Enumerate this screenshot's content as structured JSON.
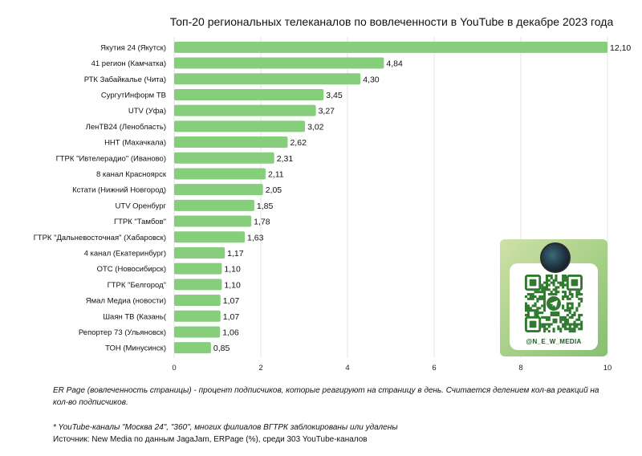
{
  "chart_data": {
    "type": "bar",
    "orientation": "horizontal",
    "title": "Топ-20 региональных телеканалов по вовлеченности в YouTube в декабре 2023 года",
    "categories": [
      "Якутия 24 (Якутск)",
      "41 регион (Камчатка)",
      "РТК Забайкалье (Чита)",
      "СургутИнформ ТВ",
      "UTV (Уфа)",
      "ЛенТВ24 (Ленобласть)",
      "ННТ (Махачкала)",
      "ГТРК \"Ивтелерадио\" (Иваново)",
      "8 канал Красноярск",
      "Кстати (Нижний Новгород)",
      "UTV Оренбург",
      "ГТРК \"Тамбов\"",
      "ГТРК \"Дальневосточная\" (Хабаровск)",
      "4 канал (Екатеринбург)",
      "ОТС (Новосибирск)",
      "ГТРК \"Белгород\"",
      "Ямал Медиа (новости)",
      "Шаян ТВ (Казань(",
      "Репортер 73 (Ульяновск)",
      "ТОН (Минусинск)"
    ],
    "values": [
      12.1,
      4.84,
      4.3,
      3.45,
      3.27,
      3.02,
      2.62,
      2.31,
      2.11,
      2.05,
      1.85,
      1.78,
      1.63,
      1.17,
      1.1,
      1.1,
      1.07,
      1.07,
      1.06,
      0.85
    ],
    "value_labels": [
      "12,10",
      "4,84",
      "4,30",
      "3,45",
      "3,27",
      "3,02",
      "2,62",
      "2,31",
      "2,11",
      "2,05",
      "1,85",
      "1,78",
      "1,63",
      "1,17",
      "1,10",
      "1,10",
      "1,07",
      "1,07",
      "1,06",
      "0,85"
    ],
    "xticks": [
      0,
      2,
      4,
      6,
      8,
      10
    ],
    "xlim": [
      0,
      10
    ],
    "first_bar_clipped_at_axis_max": true,
    "xlabel": "",
    "ylabel": "",
    "grid": "vertical",
    "bar_color": "#86ce7c"
  },
  "notes": {
    "er_definition": "ER Page (вовлеченность страницы) - процент подписчиков, которые реагируют на страницу в день. Считается делением кол-ва реакций на кол-во подписчиков.",
    "footnote": "* YouTube-каналы \"Москва 24\", \"360\", многих филиалов ВГТРК заблокированы или удалены",
    "source": "Источник: New Media по данным JagaJam, ERPage (%), среди 303 YouTube-каналов"
  },
  "qr_card": {
    "handle": "@N_E_W_MEDIA",
    "icon": "telegram-icon"
  }
}
